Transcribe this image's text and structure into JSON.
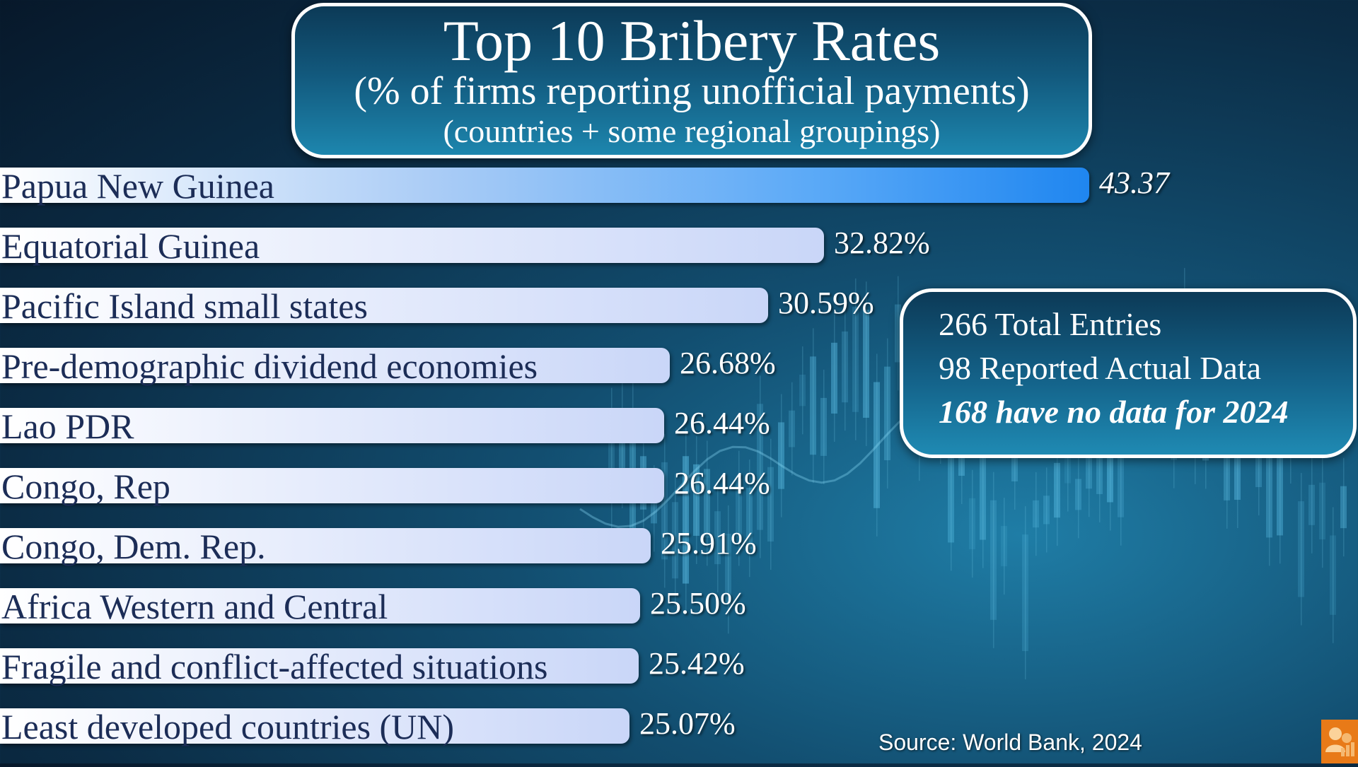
{
  "title": {
    "main": "Top 10 Bribery Rates",
    "sub1": "(% of firms reporting unofficial payments)",
    "sub2": "(countries + some regional groupings)"
  },
  "stats": {
    "total": "266 Total Entries",
    "reported": "98 Reported Actual Data",
    "missing": "168 have no data for 2024"
  },
  "source": "Source: World Bank, 2024",
  "colors": {
    "bar_top_end": "#1f86f0",
    "bar_end": "#c9d6f8",
    "label": "#1c2d57",
    "panel": "#14638a"
  },
  "chart_data": {
    "type": "bar",
    "orientation": "horizontal",
    "categories": [
      "Papua New Guinea",
      "Equatorial Guinea",
      "Pacific Island small states",
      "Pre-demographic dividend economies",
      "Lao PDR",
      "Congo, Rep",
      "Congo, Dem. Rep.",
      "Africa Western and Central",
      "Fragile and conflict-affected situations",
      "Least developed countries (UN)"
    ],
    "values": [
      43.37,
      32.82,
      30.59,
      26.68,
      26.44,
      26.44,
      25.91,
      25.5,
      25.42,
      25.07
    ],
    "value_labels": [
      "43.37",
      "32.82%",
      "30.59%",
      "26.68%",
      "26.44%",
      "26.44%",
      "25.91%",
      "25.50%",
      "25.42%",
      "25.07%"
    ],
    "grid": false
  }
}
